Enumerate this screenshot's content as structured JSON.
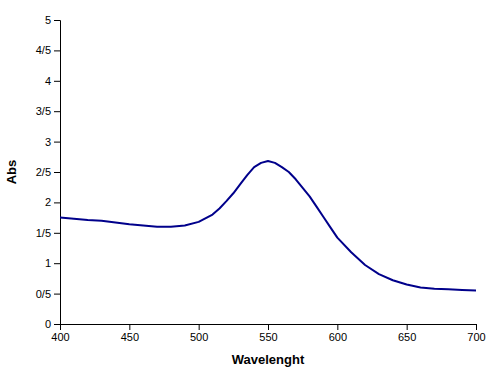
{
  "chart_data": {
    "type": "line",
    "xlabel": "Wavelenght",
    "ylabel": "Abs",
    "color": "#00008B",
    "xlim": [
      400,
      700
    ],
    "ylim": [
      0,
      5
    ],
    "xticks": [
      400,
      450,
      500,
      550,
      600,
      650,
      700
    ],
    "yticks": [
      0,
      {
        "value": 0.5,
        "label": "0/5"
      },
      1,
      {
        "value": 1.5,
        "label": "1/5"
      },
      2,
      {
        "value": 2.5,
        "label": "2/5"
      },
      3,
      {
        "value": 3.5,
        "label": "3/5"
      },
      4,
      {
        "value": 4.5,
        "label": "4/5"
      },
      5
    ],
    "x": [
      400,
      410,
      420,
      430,
      440,
      450,
      460,
      470,
      480,
      490,
      500,
      510,
      515,
      520,
      525,
      530,
      535,
      540,
      545,
      550,
      555,
      560,
      565,
      570,
      575,
      580,
      585,
      590,
      595,
      600,
      610,
      620,
      630,
      640,
      650,
      660,
      670,
      680,
      690,
      700
    ],
    "values": [
      1.75,
      1.73,
      1.71,
      1.7,
      1.67,
      1.64,
      1.62,
      1.6,
      1.6,
      1.62,
      1.68,
      1.8,
      1.9,
      2.02,
      2.15,
      2.3,
      2.45,
      2.58,
      2.65,
      2.68,
      2.65,
      2.58,
      2.5,
      2.38,
      2.24,
      2.1,
      1.93,
      1.76,
      1.59,
      1.42,
      1.18,
      0.97,
      0.82,
      0.72,
      0.65,
      0.6,
      0.58,
      0.57,
      0.56,
      0.55
    ]
  }
}
